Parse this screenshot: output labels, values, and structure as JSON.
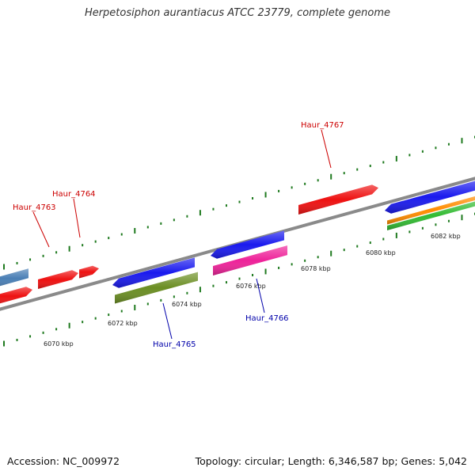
{
  "title": "Herpetosiphon aurantiacus ATCC 23779, complete genome",
  "accession_text": "Accession: NC_009972",
  "summary_text": "Topology: circular; Length: 6,346,587 bp; Genes: 5,042",
  "colors": {
    "backbone": "#8a8a8a",
    "tick": "#1f7a1f",
    "label_forward": "#cc0000",
    "label_reverse": "#0000aa",
    "red": "#ee1111",
    "blue": "#1a1aee",
    "steelblue": "#4a7fb5",
    "olive": "#6b8e23",
    "magenta": "#ee2299",
    "orange": "#ff8c00",
    "green": "#33bb33"
  },
  "scale": {
    "labels": [
      {
        "text": "6070 kbp",
        "kbp": 6070
      },
      {
        "text": "6072 kbp",
        "kbp": 6072
      },
      {
        "text": "6074 kbp",
        "kbp": 6074
      },
      {
        "text": "6076 kbp",
        "kbp": 6076
      },
      {
        "text": "6078 kbp",
        "kbp": 6078
      },
      {
        "text": "6080 kbp",
        "kbp": 6080
      },
      {
        "text": "6082 kbp",
        "kbp": 6082
      }
    ]
  },
  "gene_labels": [
    {
      "name": "Haur_4763",
      "strand": "forward"
    },
    {
      "name": "Haur_4764",
      "strand": "forward"
    },
    {
      "name": "Haur_4767",
      "strand": "forward"
    },
    {
      "name": "Haur_4765",
      "strand": "reverse"
    },
    {
      "name": "Haur_4766",
      "strand": "reverse"
    }
  ]
}
